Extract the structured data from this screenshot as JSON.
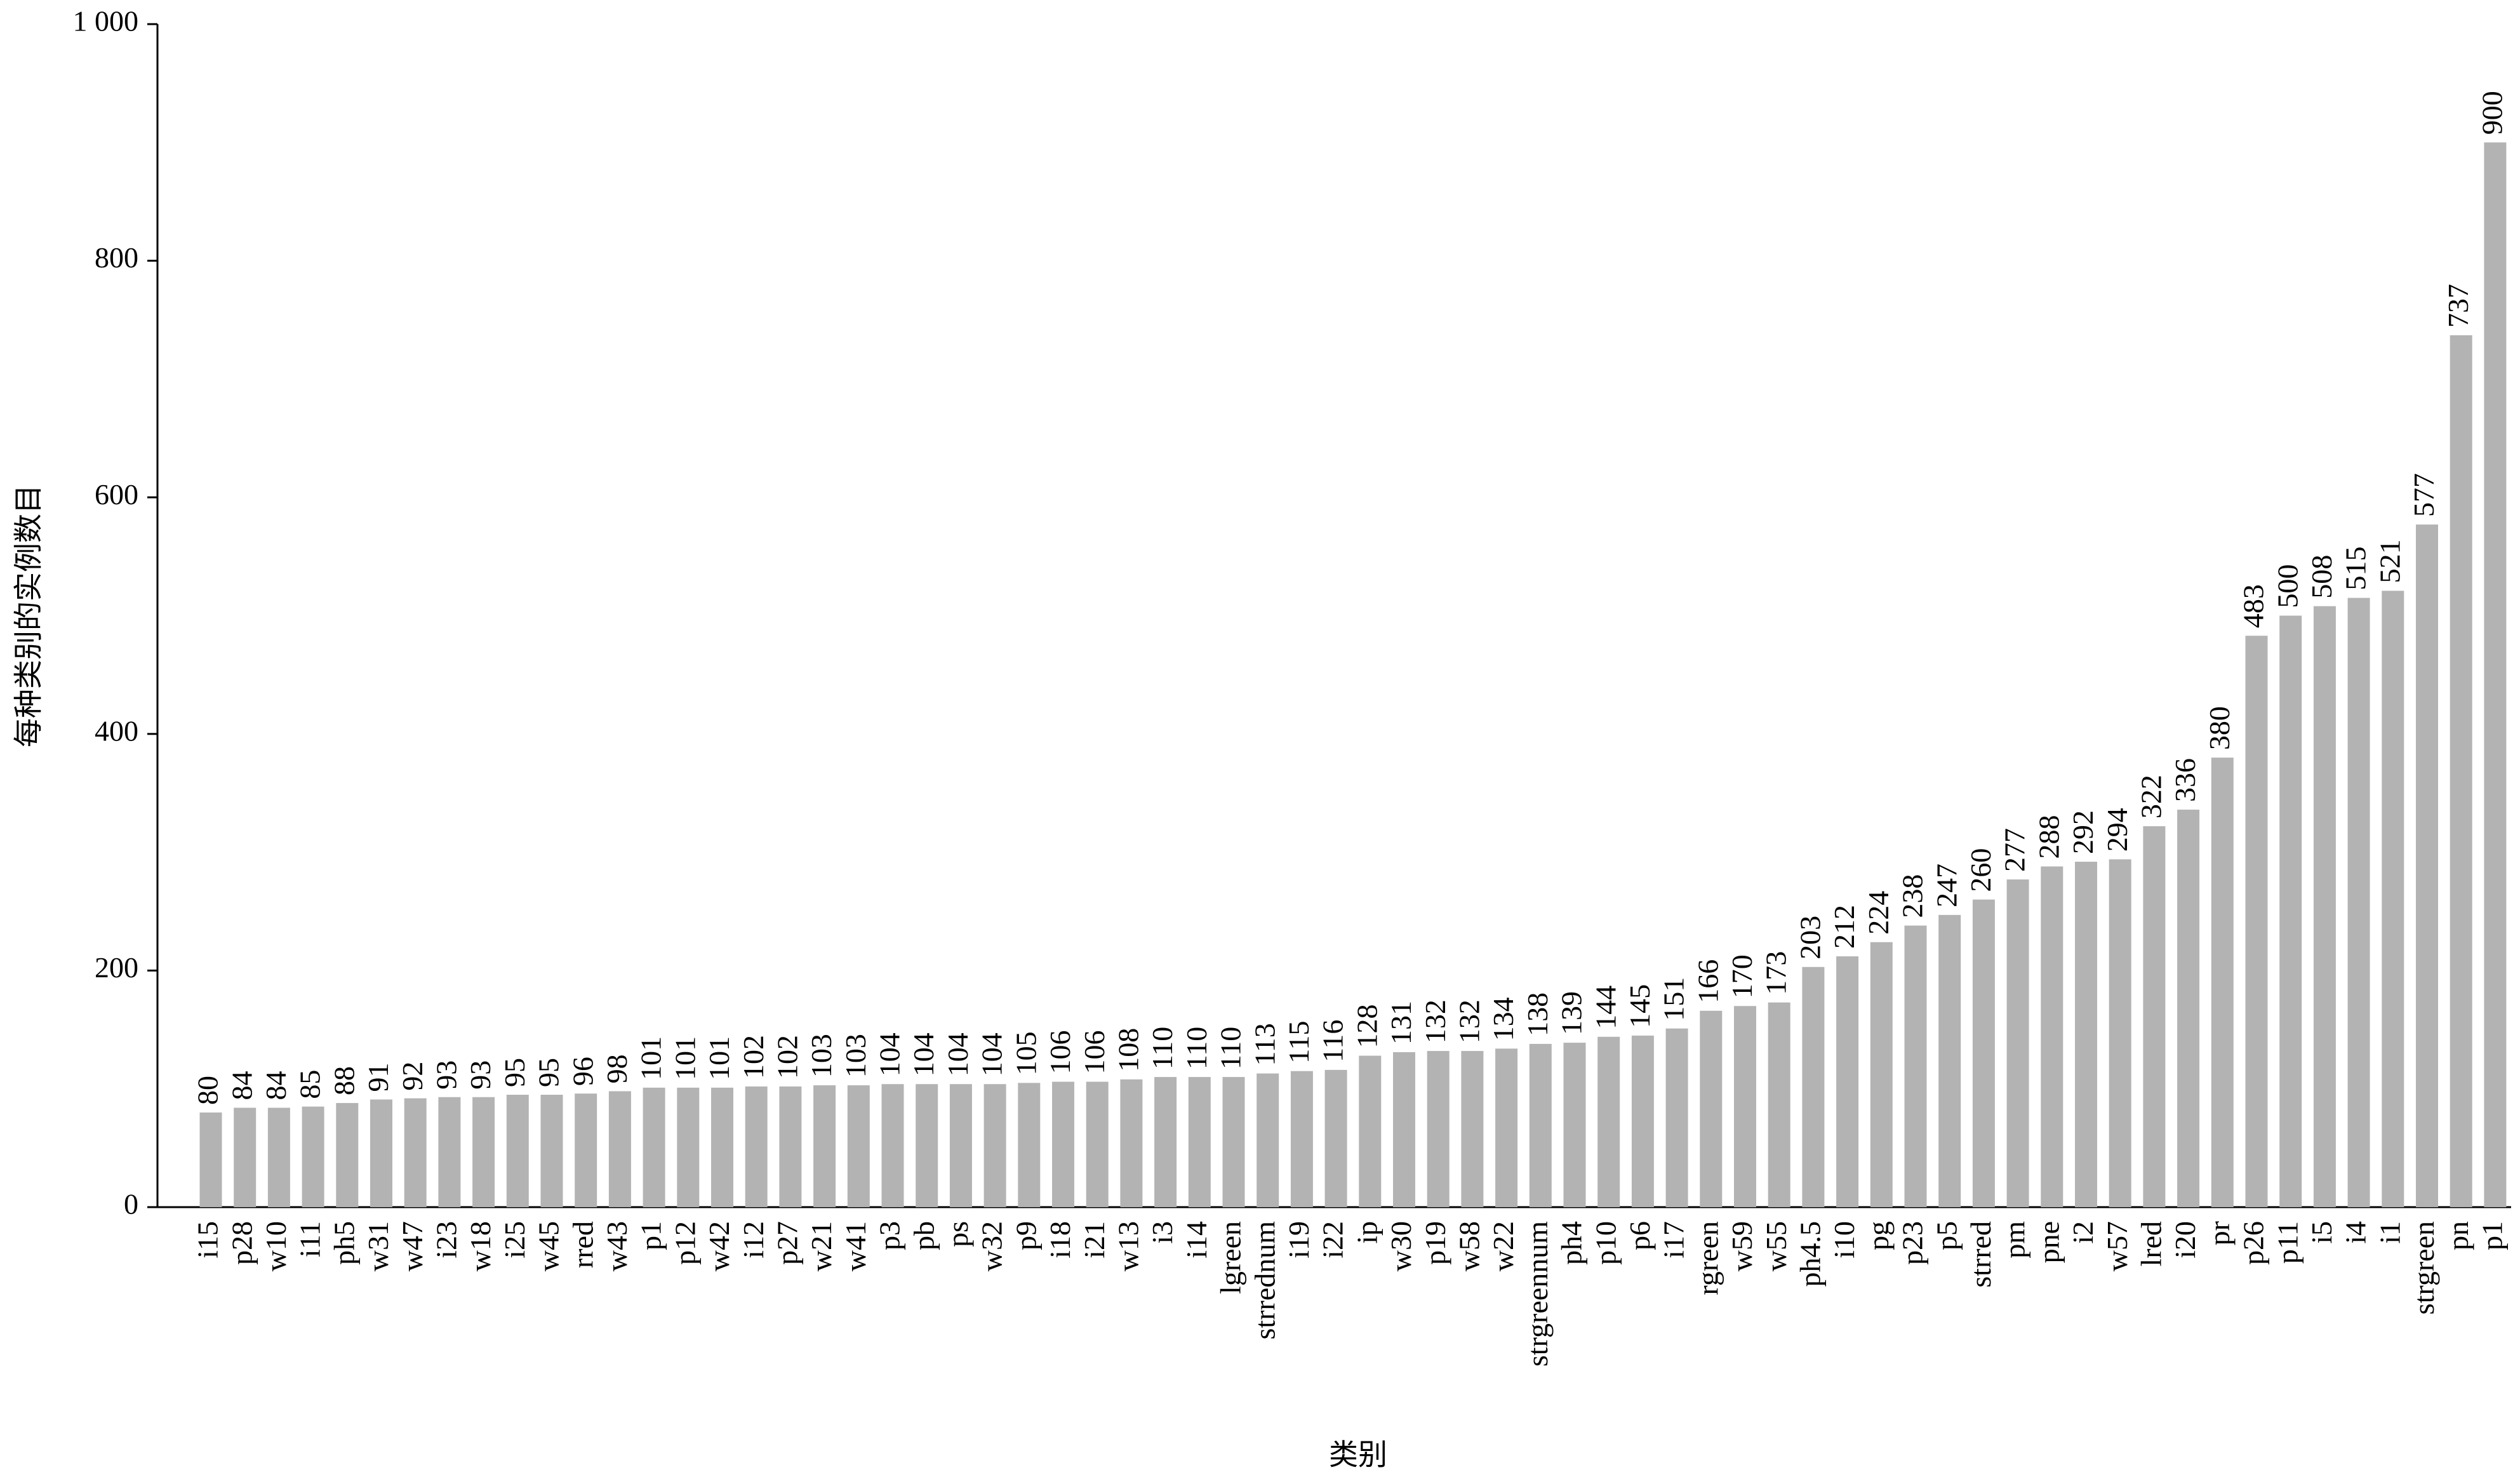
{
  "chart_data": {
    "type": "bar",
    "y_label": "每种类别的实例数目",
    "x_label": "类别",
    "categories": [
      "i15",
      "p28",
      "w10",
      "i11",
      "ph5",
      "w31",
      "w47",
      "i23",
      "w18",
      "i25",
      "w45",
      "rred",
      "w43",
      "p1",
      "p12",
      "w42",
      "i12",
      "p27",
      "w21",
      "w41",
      "p3",
      "pb",
      "ps",
      "w32",
      "p9",
      "i18",
      "i21",
      "w13",
      "i3",
      "i14",
      "lgreen",
      "strrednum",
      "i19",
      "i22",
      "ip",
      "w30",
      "p19",
      "w58",
      "w22",
      "strgreennum",
      "ph4",
      "p10",
      "p6",
      "i17",
      "rgreen",
      "w59",
      "w55",
      "ph4.5",
      "i10",
      "pg",
      "p23",
      "p5",
      "strred",
      "pm",
      "pne",
      "i2",
      "w57",
      "lred",
      "i20",
      "pr",
      "p26",
      "p11",
      "i5",
      "i4",
      "i1",
      "strgreen",
      "pn",
      "p1"
    ],
    "values": [
      80,
      84,
      84,
      85,
      88,
      91,
      92,
      93,
      93,
      95,
      95,
      96,
      98,
      101,
      101,
      101,
      102,
      102,
      103,
      103,
      104,
      104,
      104,
      104,
      105,
      106,
      106,
      108,
      110,
      110,
      110,
      113,
      115,
      116,
      128,
      131,
      132,
      132,
      134,
      138,
      139,
      144,
      145,
      151,
      166,
      170,
      173,
      203,
      212,
      224,
      238,
      247,
      260,
      277,
      288,
      292,
      294,
      322,
      336,
      380,
      483,
      500,
      508,
      515,
      521,
      577,
      737,
      900
    ],
    "color": "#b3b3b3",
    "ylim": [
      0,
      1000
    ],
    "yticks": [
      0,
      200,
      400,
      600,
      800,
      {
        "value": 1000,
        "label": "1 000"
      }
    ],
    "grid": false
  }
}
